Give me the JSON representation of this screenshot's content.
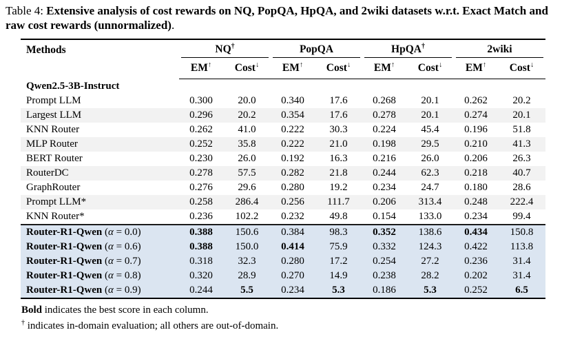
{
  "caption": {
    "prefix": "Table 4:",
    "bold_text": "Extensive analysis of cost rewards on NQ, PopQA, HpQA, and 2wiki datasets w.r.t. Exact Match and raw cost rewards (unnormalized)",
    "suffix": "."
  },
  "table": {
    "methods_header": "Methods",
    "alpha_symbol": "α",
    "groups": [
      {
        "label": "NQ",
        "sup": "†"
      },
      {
        "label": "PopQA",
        "sup": ""
      },
      {
        "label": "HpQA",
        "sup": "†"
      },
      {
        "label": "2wiki",
        "sup": ""
      }
    ],
    "metric_pair": [
      {
        "label": "EM",
        "arrow": "↑"
      },
      {
        "label": "Cost",
        "arrow": "↓"
      }
    ],
    "rows": [
      {
        "method": "Qwen2.5-3B-Instruct",
        "section": true,
        "bg": "white",
        "values": [],
        "bold": []
      },
      {
        "method": "Prompt LLM",
        "bg": "white",
        "values": [
          "0.300",
          "20.0",
          "0.340",
          "17.6",
          "0.268",
          "20.1",
          "0.262",
          "20.2"
        ],
        "bold": [
          0,
          0,
          0,
          0,
          0,
          0,
          0,
          0
        ]
      },
      {
        "method": "Largest LLM",
        "bg": "gray",
        "values": [
          "0.296",
          "20.2",
          "0.354",
          "17.6",
          "0.278",
          "20.1",
          "0.274",
          "20.1"
        ],
        "bold": [
          0,
          0,
          0,
          0,
          0,
          0,
          0,
          0
        ]
      },
      {
        "method": "KNN Router",
        "bg": "white",
        "values": [
          "0.262",
          "41.0",
          "0.222",
          "30.3",
          "0.224",
          "45.4",
          "0.196",
          "51.8"
        ],
        "bold": [
          0,
          0,
          0,
          0,
          0,
          0,
          0,
          0
        ]
      },
      {
        "method": "MLP Router",
        "bg": "gray",
        "values": [
          "0.252",
          "35.8",
          "0.222",
          "21.0",
          "0.198",
          "29.5",
          "0.210",
          "41.3"
        ],
        "bold": [
          0,
          0,
          0,
          0,
          0,
          0,
          0,
          0
        ]
      },
      {
        "method": "BERT Router",
        "bg": "white",
        "values": [
          "0.230",
          "26.0",
          "0.192",
          "16.3",
          "0.216",
          "26.0",
          "0.206",
          "26.3"
        ],
        "bold": [
          0,
          0,
          0,
          0,
          0,
          0,
          0,
          0
        ]
      },
      {
        "method": "RouterDC",
        "bg": "gray",
        "values": [
          "0.278",
          "57.5",
          "0.282",
          "21.8",
          "0.244",
          "62.3",
          "0.218",
          "40.7"
        ],
        "bold": [
          0,
          0,
          0,
          0,
          0,
          0,
          0,
          0
        ]
      },
      {
        "method": "GraphRouter",
        "bg": "white",
        "values": [
          "0.276",
          "29.6",
          "0.280",
          "19.2",
          "0.234",
          "24.7",
          "0.180",
          "28.6"
        ],
        "bold": [
          0,
          0,
          0,
          0,
          0,
          0,
          0,
          0
        ]
      },
      {
        "method": "Prompt LLM*",
        "bg": "gray",
        "values": [
          "0.258",
          "286.4",
          "0.256",
          "111.7",
          "0.206",
          "313.4",
          "0.248",
          "222.4"
        ],
        "bold": [
          0,
          0,
          0,
          0,
          0,
          0,
          0,
          0
        ]
      },
      {
        "method": "KNN Router*",
        "bg": "white",
        "values": [
          "0.236",
          "102.2",
          "0.232",
          "49.8",
          "0.154",
          "133.0",
          "0.234",
          "99.4"
        ],
        "bold": [
          0,
          0,
          0,
          0,
          0,
          0,
          0,
          0
        ]
      },
      {
        "method": "Router-R1-Qwen",
        "alpha": "0.0",
        "bg": "blue",
        "rule_above": true,
        "values": [
          "0.388",
          "150.6",
          "0.384",
          "98.3",
          "0.352",
          "138.6",
          "0.434",
          "150.8"
        ],
        "bold": [
          1,
          0,
          0,
          0,
          1,
          0,
          1,
          0
        ]
      },
      {
        "method": "Router-R1-Qwen",
        "alpha": "0.6",
        "bg": "blue",
        "values": [
          "0.388",
          "150.0",
          "0.414",
          "75.9",
          "0.332",
          "124.3",
          "0.422",
          "113.8"
        ],
        "bold": [
          1,
          0,
          1,
          0,
          0,
          0,
          0,
          0
        ]
      },
      {
        "method": "Router-R1-Qwen",
        "alpha": "0.7",
        "bg": "blue",
        "values": [
          "0.318",
          "32.3",
          "0.280",
          "17.2",
          "0.254",
          "27.2",
          "0.236",
          "31.4"
        ],
        "bold": [
          0,
          0,
          0,
          0,
          0,
          0,
          0,
          0
        ]
      },
      {
        "method": "Router-R1-Qwen",
        "alpha": "0.8",
        "bg": "blue",
        "values": [
          "0.320",
          "28.9",
          "0.270",
          "14.9",
          "0.238",
          "28.2",
          "0.202",
          "31.4"
        ],
        "bold": [
          0,
          0,
          0,
          0,
          0,
          0,
          0,
          0
        ]
      },
      {
        "method": "Router-R1-Qwen",
        "alpha": "0.9",
        "bg": "blue",
        "rule_below": true,
        "values": [
          "0.244",
          "5.5",
          "0.234",
          "5.3",
          "0.186",
          "5.3",
          "0.252",
          "6.5"
        ],
        "bold": [
          0,
          1,
          0,
          1,
          0,
          1,
          0,
          1
        ]
      }
    ]
  },
  "footnotes": [
    {
      "lead": "Bold",
      "lead_style": "bold",
      "text": "indicates the best score in each column."
    },
    {
      "lead": "†",
      "lead_style": "sup",
      "text": "indicates in-domain evaluation; all others are out-of-domain."
    }
  ],
  "colors": {
    "row_stripe_gray": "#f2f2f2",
    "highlight_blue": "#dbe5f1",
    "rule_black": "#000000"
  }
}
